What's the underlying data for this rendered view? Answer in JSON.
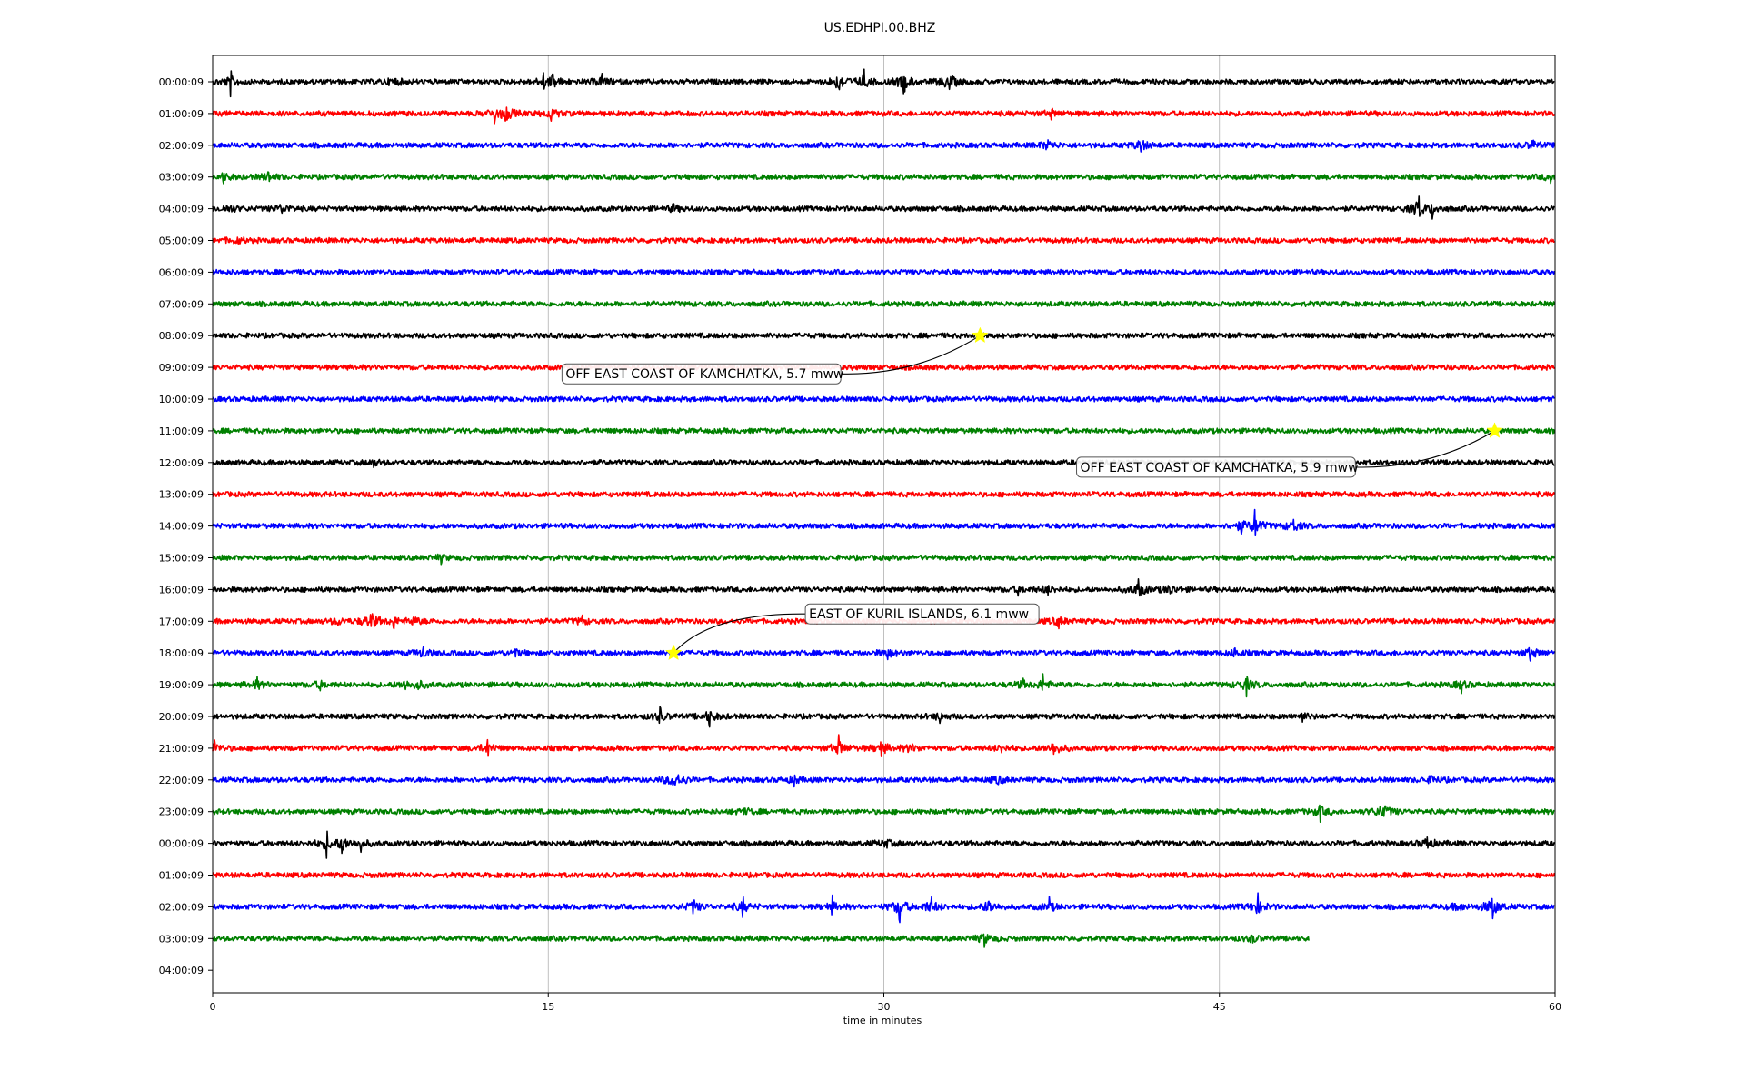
{
  "chart_data": {
    "type": "line",
    "title": "US.EDHPI.00.BHZ",
    "xlabel": "time in minutes",
    "xlim": [
      0,
      60
    ],
    "x_ticks": [
      0,
      15,
      30,
      45,
      60
    ],
    "x_tick_labels": [
      "0",
      "15",
      "30",
      "45",
      "60"
    ],
    "grid": "vertical lines at 15, 30, 45",
    "row_labels": [
      "00:00:09",
      "01:00:09",
      "02:00:09",
      "03:00:09",
      "04:00:09",
      "05:00:09",
      "06:00:09",
      "07:00:09",
      "08:00:09",
      "09:00:09",
      "10:00:09",
      "11:00:09",
      "12:00:09",
      "13:00:09",
      "14:00:09",
      "15:00:09",
      "16:00:09",
      "17:00:09",
      "18:00:09",
      "19:00:09",
      "20:00:09",
      "21:00:09",
      "22:00:09",
      "23:00:09",
      "00:00:09",
      "01:00:09",
      "02:00:09",
      "03:00:09",
      "04:00:09"
    ],
    "trace_colors": [
      "#000000",
      "#ff0000",
      "#0000ff",
      "#008000"
    ],
    "last_trace_end_minute": 49,
    "traces": [
      {
        "row": 0,
        "color": "#000000",
        "bursts": [
          {
            "t": 0.8,
            "amp": 0.6
          },
          {
            "t": 8.1,
            "amp": 0.35
          },
          {
            "t": 14.8,
            "amp": 0.45
          },
          {
            "t": 15.2,
            "amp": 0.6
          },
          {
            "t": 17.4,
            "amp": 0.4
          },
          {
            "t": 28.0,
            "amp": 0.85
          },
          {
            "t": 29.1,
            "amp": 0.6
          },
          {
            "t": 30.9,
            "amp": 0.8
          },
          {
            "t": 32.9,
            "amp": 0.8
          }
        ]
      },
      {
        "row": 1,
        "color": "#ff0000",
        "bursts": [
          {
            "t": 12.6,
            "amp": 0.5
          },
          {
            "t": 13.1,
            "amp": 0.75
          },
          {
            "t": 15.1,
            "amp": 0.5
          },
          {
            "t": 37.5,
            "amp": 0.25
          }
        ]
      },
      {
        "row": 2,
        "color": "#0000ff",
        "bursts": [
          {
            "t": 37.3,
            "amp": 0.45
          },
          {
            "t": 41.5,
            "amp": 0.5
          },
          {
            "t": 59.0,
            "amp": 0.35
          }
        ]
      },
      {
        "row": 3,
        "color": "#008000",
        "bursts": [
          {
            "t": 0.5,
            "amp": 0.35
          },
          {
            "t": 2.5,
            "amp": 0.35
          },
          {
            "t": 59.8,
            "amp": 0.3
          }
        ]
      },
      {
        "row": 4,
        "color": "#000000",
        "bursts": [
          {
            "t": 0.7,
            "amp": 0.4
          },
          {
            "t": 3.1,
            "amp": 0.45
          },
          {
            "t": 20.6,
            "amp": 0.3
          },
          {
            "t": 53.9,
            "amp": 0.9
          },
          {
            "t": 54.5,
            "amp": 0.5
          }
        ]
      },
      {
        "row": 5,
        "color": "#ff0000",
        "bursts": [
          {
            "t": 1.1,
            "amp": 0.3
          }
        ]
      },
      {
        "row": 6,
        "color": "#0000ff",
        "bursts": []
      },
      {
        "row": 7,
        "color": "#008000",
        "bursts": []
      },
      {
        "row": 8,
        "color": "#000000",
        "bursts": []
      },
      {
        "row": 9,
        "color": "#ff0000",
        "bursts": []
      },
      {
        "row": 10,
        "color": "#0000ff",
        "bursts": []
      },
      {
        "row": 11,
        "color": "#008000",
        "bursts": []
      },
      {
        "row": 12,
        "color": "#000000",
        "bursts": [
          {
            "t": 7.2,
            "amp": 0.25
          }
        ]
      },
      {
        "row": 13,
        "color": "#ff0000",
        "bursts": []
      },
      {
        "row": 14,
        "color": "#0000ff",
        "bursts": [
          {
            "t": 46.0,
            "amp": 0.5
          },
          {
            "t": 46.6,
            "amp": 0.9
          },
          {
            "t": 48.3,
            "amp": 0.5
          }
        ]
      },
      {
        "row": 15,
        "color": "#008000",
        "bursts": [
          {
            "t": 10.2,
            "amp": 0.25
          }
        ]
      },
      {
        "row": 16,
        "color": "#000000",
        "bursts": [
          {
            "t": 36.0,
            "amp": 0.35
          },
          {
            "t": 37.3,
            "amp": 0.4
          },
          {
            "t": 41.4,
            "amp": 0.7
          },
          {
            "t": 42.8,
            "amp": 0.4
          }
        ]
      },
      {
        "row": 17,
        "color": "#ff0000",
        "bursts": [
          {
            "t": 5.6,
            "amp": 0.3
          },
          {
            "t": 7.1,
            "amp": 0.85
          },
          {
            "t": 8.1,
            "amp": 0.35
          },
          {
            "t": 9.0,
            "amp": 0.4
          },
          {
            "t": 16.5,
            "amp": 0.3
          },
          {
            "t": 37.8,
            "amp": 0.4
          }
        ]
      },
      {
        "row": 18,
        "color": "#0000ff",
        "bursts": [
          {
            "t": 9.4,
            "amp": 0.4
          },
          {
            "t": 13.5,
            "amp": 0.3
          },
          {
            "t": 30.2,
            "amp": 0.4
          },
          {
            "t": 45.7,
            "amp": 0.3
          },
          {
            "t": 58.9,
            "amp": 0.5
          }
        ]
      },
      {
        "row": 19,
        "color": "#008000",
        "bursts": [
          {
            "t": 2.0,
            "amp": 0.4
          },
          {
            "t": 4.8,
            "amp": 0.35
          },
          {
            "t": 8.6,
            "amp": 0.4
          },
          {
            "t": 9.2,
            "amp": 0.4
          },
          {
            "t": 36.2,
            "amp": 0.35
          },
          {
            "t": 37.1,
            "amp": 0.45
          },
          {
            "t": 46.2,
            "amp": 0.6
          },
          {
            "t": 55.8,
            "amp": 0.4
          }
        ]
      },
      {
        "row": 20,
        "color": "#000000",
        "bursts": [
          {
            "t": 20.0,
            "amp": 0.45
          },
          {
            "t": 22.2,
            "amp": 0.55
          },
          {
            "t": 32.5,
            "amp": 0.35
          },
          {
            "t": 48.7,
            "amp": 0.3
          }
        ]
      },
      {
        "row": 21,
        "color": "#ff0000",
        "bursts": [
          {
            "t": 0.1,
            "amp": 0.45
          },
          {
            "t": 12.3,
            "amp": 0.5
          },
          {
            "t": 28.0,
            "amp": 0.65
          },
          {
            "t": 29.9,
            "amp": 0.6
          },
          {
            "t": 31.2,
            "amp": 0.4
          },
          {
            "t": 35.3,
            "amp": 0.35
          },
          {
            "t": 37.6,
            "amp": 0.6
          }
        ]
      },
      {
        "row": 22,
        "color": "#0000ff",
        "bursts": [
          {
            "t": 20.7,
            "amp": 0.85
          },
          {
            "t": 26.0,
            "amp": 0.3
          },
          {
            "t": 35.1,
            "amp": 0.3
          },
          {
            "t": 54.5,
            "amp": 0.35
          }
        ]
      },
      {
        "row": 23,
        "color": "#008000",
        "bursts": [
          {
            "t": 23.8,
            "amp": 0.3
          },
          {
            "t": 49.5,
            "amp": 0.5
          },
          {
            "t": 52.3,
            "amp": 0.75
          }
        ]
      },
      {
        "row": 24,
        "color": "#000000",
        "bursts": [
          {
            "t": 5.1,
            "amp": 0.65
          },
          {
            "t": 5.8,
            "amp": 0.8
          },
          {
            "t": 6.6,
            "amp": 0.45
          },
          {
            "t": 30.1,
            "amp": 0.35
          },
          {
            "t": 54.3,
            "amp": 0.45
          }
        ]
      },
      {
        "row": 25,
        "color": "#ff0000",
        "bursts": []
      },
      {
        "row": 26,
        "color": "#0000ff",
        "bursts": [
          {
            "t": 21.5,
            "amp": 0.5
          },
          {
            "t": 23.7,
            "amp": 0.5
          },
          {
            "t": 27.7,
            "amp": 0.45
          },
          {
            "t": 30.7,
            "amp": 0.85
          },
          {
            "t": 32.1,
            "amp": 0.7
          },
          {
            "t": 34.7,
            "amp": 0.6
          },
          {
            "t": 37.4,
            "amp": 0.4
          },
          {
            "t": 46.7,
            "amp": 0.7
          },
          {
            "t": 55.7,
            "amp": 0.4
          },
          {
            "t": 57.2,
            "amp": 0.85
          }
        ]
      },
      {
        "row": 27,
        "color": "#008000",
        "bursts": [
          {
            "t": 34.5,
            "amp": 0.45
          },
          {
            "t": 46.5,
            "amp": 0.3
          }
        ]
      }
    ],
    "events": [
      {
        "label": "OFF EAST COAST OF KAMCHATKA, 5.7 mww",
        "row": 8,
        "minute": 34.3
      },
      {
        "label": "OFF EAST COAST OF KAMCHATKA, 5.9 mww",
        "row": 11,
        "minute": 57.3
      },
      {
        "label": "EAST OF KURIL ISLANDS, 6.1 mww",
        "row": 18,
        "minute": 20.6
      }
    ],
    "event_marker_color": "#ffff00"
  }
}
